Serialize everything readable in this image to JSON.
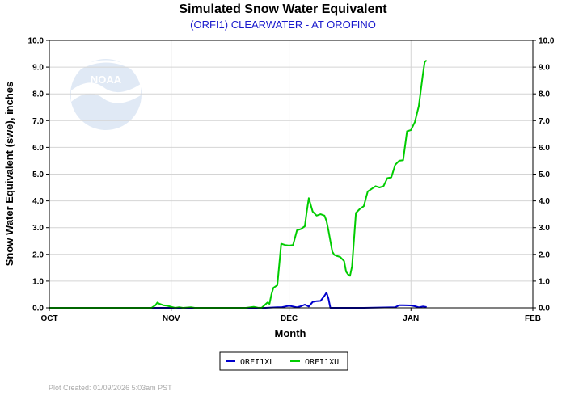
{
  "chart_data": {
    "type": "line",
    "title": "Simulated Snow Water Equivalent",
    "subtitle": "(ORFI1) CLEARWATER - AT OROFINO",
    "xlabel": "Month",
    "ylabel": "Snow Water Equivalent (swe),  inches",
    "ylim": [
      0,
      10
    ],
    "yticks": [
      "0.0",
      "1.0",
      "2.0",
      "3.0",
      "4.0",
      "5.0",
      "6.0",
      "7.0",
      "8.0",
      "9.0",
      "10.0"
    ],
    "xlim_days": [
      0,
      123
    ],
    "xticks": [
      {
        "label": "OCT",
        "day": 0
      },
      {
        "label": "NOV",
        "day": 31
      },
      {
        "label": "DEC",
        "day": 61
      },
      {
        "label": "JAN",
        "day": 92
      },
      {
        "label": "FEB",
        "day": 123
      }
    ],
    "grid": true,
    "legend_position": "bottom-center",
    "series": [
      {
        "name": "ORFI1XL",
        "color": "#0000cc",
        "points": [
          [
            0,
            0
          ],
          [
            55,
            0
          ],
          [
            56,
            0.01
          ],
          [
            58,
            0.02
          ],
          [
            59,
            0.02
          ],
          [
            60,
            0.05
          ],
          [
            61,
            0.08
          ],
          [
            62,
            0.05
          ],
          [
            63,
            0.02
          ],
          [
            64,
            0.06
          ],
          [
            65,
            0.12
          ],
          [
            66,
            0.05
          ],
          [
            67,
            0.22
          ],
          [
            68,
            0.25
          ],
          [
            69,
            0.26
          ],
          [
            70,
            0.45
          ],
          [
            70.5,
            0.57
          ],
          [
            71,
            0.35
          ],
          [
            71.5,
            0
          ],
          [
            80,
            0
          ],
          [
            88,
            0.02
          ],
          [
            89,
            0.1
          ],
          [
            90,
            0.1
          ],
          [
            92,
            0.09
          ],
          [
            93,
            0.06
          ],
          [
            94,
            0.02
          ],
          [
            95,
            0.05
          ],
          [
            96,
            0.03
          ]
        ]
      },
      {
        "name": "ORFI1XU",
        "color": "#00cc00",
        "points": [
          [
            0,
            0
          ],
          [
            26,
            0
          ],
          [
            27,
            0.1
          ],
          [
            27.5,
            0.2
          ],
          [
            28,
            0.15
          ],
          [
            29,
            0.1
          ],
          [
            30,
            0.08
          ],
          [
            31,
            0.04
          ],
          [
            32,
            0
          ],
          [
            33,
            0.02
          ],
          [
            34,
            0
          ],
          [
            36,
            0.02
          ],
          [
            37,
            0
          ],
          [
            50,
            0
          ],
          [
            52,
            0.04
          ],
          [
            53,
            0.01
          ],
          [
            54,
            0
          ],
          [
            55.5,
            0.2
          ],
          [
            56,
            0.15
          ],
          [
            56.5,
            0.5
          ],
          [
            57,
            0.75
          ],
          [
            58,
            0.85
          ],
          [
            59,
            2.4
          ],
          [
            60,
            2.35
          ],
          [
            61,
            2.33
          ],
          [
            62,
            2.35
          ],
          [
            63,
            2.9
          ],
          [
            64,
            2.95
          ],
          [
            65,
            3.05
          ],
          [
            65.5,
            3.6
          ],
          [
            66,
            4.1
          ],
          [
            67,
            3.6
          ],
          [
            68,
            3.45
          ],
          [
            69,
            3.5
          ],
          [
            70,
            3.45
          ],
          [
            70.5,
            3.25
          ],
          [
            71,
            2.9
          ],
          [
            72,
            2.1
          ],
          [
            72.5,
            1.98
          ],
          [
            73,
            1.95
          ],
          [
            74,
            1.9
          ],
          [
            75,
            1.75
          ],
          [
            75.5,
            1.35
          ],
          [
            76,
            1.25
          ],
          [
            76.5,
            1.2
          ],
          [
            77,
            1.55
          ],
          [
            78,
            3.55
          ],
          [
            79,
            3.7
          ],
          [
            80,
            3.8
          ],
          [
            81,
            4.35
          ],
          [
            82,
            4.45
          ],
          [
            83,
            4.55
          ],
          [
            84,
            4.5
          ],
          [
            85,
            4.55
          ],
          [
            86,
            4.85
          ],
          [
            87,
            4.88
          ],
          [
            88,
            5.35
          ],
          [
            89,
            5.5
          ],
          [
            90,
            5.52
          ],
          [
            91,
            6.6
          ],
          [
            92,
            6.65
          ],
          [
            93,
            6.95
          ],
          [
            94,
            7.55
          ],
          [
            95,
            8.7
          ],
          [
            95.5,
            9.2
          ],
          [
            96,
            9.25
          ]
        ]
      }
    ],
    "footer": "Plot Created: 01/09/2026 5:03am PST",
    "watermark": "NOAA"
  }
}
